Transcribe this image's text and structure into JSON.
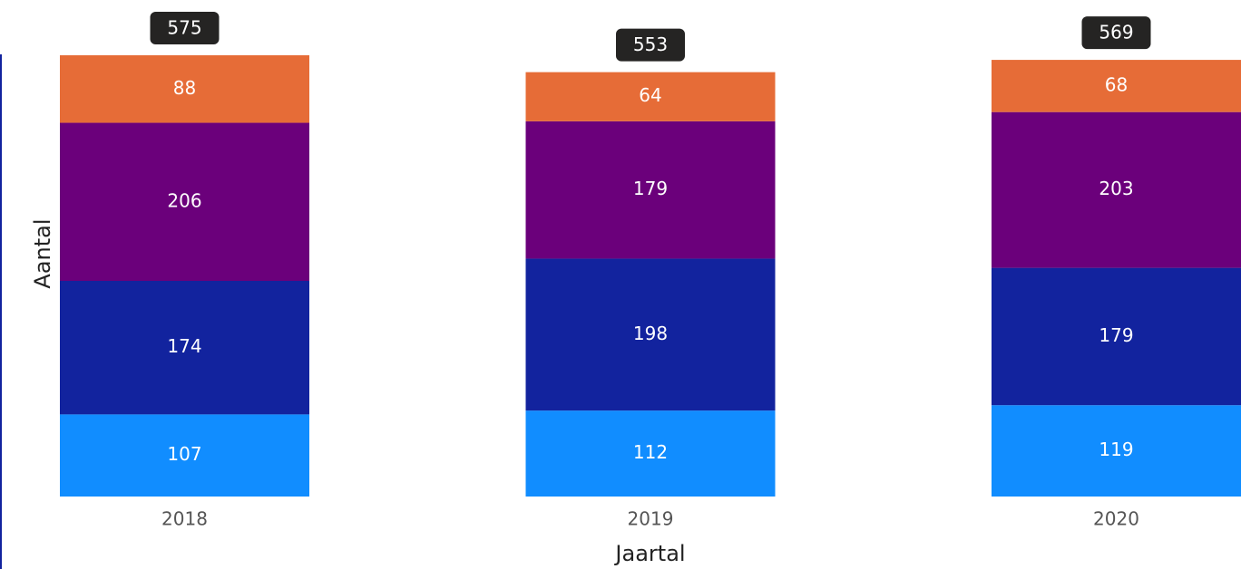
{
  "chart_data": {
    "type": "bar",
    "stacked": true,
    "title": "",
    "xlabel": "Jaartal",
    "ylabel": "Aantal",
    "categories": [
      "2018",
      "2019",
      "2020"
    ],
    "series": [
      {
        "values": [
          107,
          112,
          119
        ],
        "color": "#118DFF"
      },
      {
        "values": [
          174,
          198,
          179
        ],
        "color": "#12239E"
      },
      {
        "values": [
          206,
          179,
          203
        ],
        "color": "#6B007B"
      },
      {
        "values": [
          88,
          64,
          68
        ],
        "color": "#E66C37"
      }
    ],
    "totals": [
      575,
      553,
      569
    ],
    "ylim": [
      0,
      600
    ],
    "grid": false,
    "legend": "none"
  },
  "colors": {
    "total_badge": "#252423",
    "segment_label": "#ffffff",
    "tick_label": "#555555",
    "axis_title": "#222222",
    "left_edge_accent": "#12239E"
  }
}
